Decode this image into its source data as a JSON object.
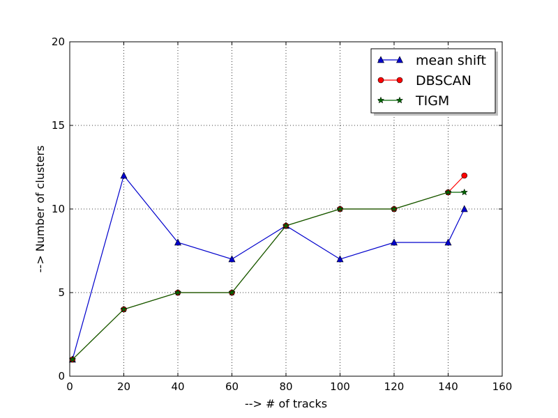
{
  "chart_data": {
    "type": "line",
    "title": "",
    "xlabel": "--> # of tracks",
    "ylabel": "--> Number of clusters",
    "xlim": [
      0,
      160
    ],
    "ylim": [
      0,
      20
    ],
    "xticks": [
      0,
      20,
      40,
      60,
      80,
      100,
      120,
      140,
      160
    ],
    "yticks": [
      0,
      5,
      10,
      15,
      20
    ],
    "grid": true,
    "legend_position": "top-right",
    "series": [
      {
        "name": "mean shift",
        "color": "#0000cc",
        "marker": "triangle",
        "x": [
          1,
          20,
          40,
          60,
          80,
          100,
          120,
          140,
          146
        ],
        "y": [
          1,
          12,
          8,
          7,
          9,
          7,
          8,
          8,
          10
        ]
      },
      {
        "name": "DBSCAN",
        "color": "#ff0000",
        "marker": "circle",
        "x": [
          1,
          20,
          40,
          60,
          80,
          100,
          120,
          140,
          146
        ],
        "y": [
          1,
          4,
          5,
          5,
          9,
          10,
          10,
          11,
          12
        ]
      },
      {
        "name": "TIGM",
        "color": "#006400",
        "marker": "star",
        "x": [
          1,
          20,
          40,
          60,
          80,
          100,
          120,
          140,
          146
        ],
        "y": [
          1,
          4,
          5,
          5,
          9,
          10,
          10,
          11,
          11
        ]
      }
    ]
  }
}
